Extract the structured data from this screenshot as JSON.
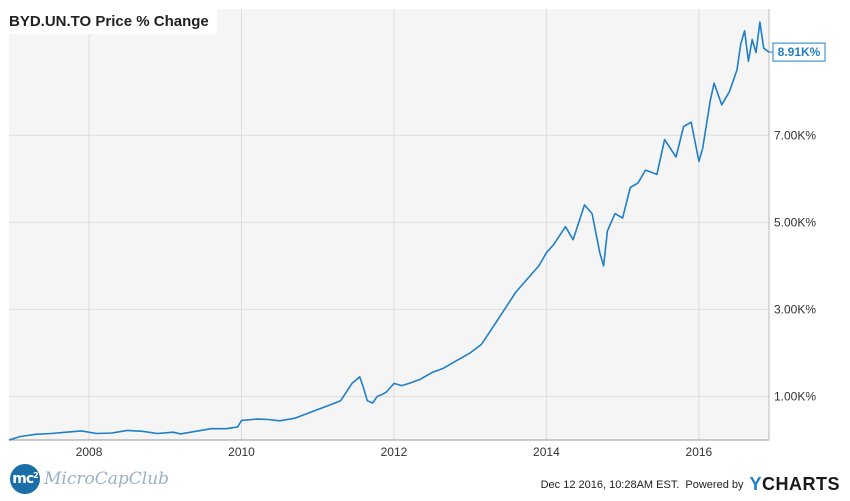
{
  "chart_data": {
    "type": "line",
    "title": "BYD.UN.TO Price % Change",
    "xlabel": "",
    "ylabel": "",
    "x_ticks": [
      "2008",
      "2010",
      "2012",
      "2014",
      "2016"
    ],
    "y_ticks": [
      "1.00K%",
      "3.00K%",
      "5.00K%",
      "7.00K%"
    ],
    "y_tick_values": [
      1000,
      3000,
      5000,
      7000
    ],
    "xlim": [
      2006.95,
      2016.92
    ],
    "ylim": [
      0,
      9900
    ],
    "grid": true,
    "last_value_label": "8.91K%",
    "series": [
      {
        "color": "#1f7fc8",
        "x": [
          2006.95,
          2007.1,
          2007.3,
          2007.5,
          2007.7,
          2007.9,
          2008.1,
          2008.3,
          2008.5,
          2008.7,
          2008.9,
          2009.1,
          2009.2,
          2009.4,
          2009.6,
          2009.8,
          2009.95,
          2010.0,
          2010.2,
          2010.35,
          2010.5,
          2010.7,
          2010.85,
          2011.0,
          2011.15,
          2011.3,
          2011.45,
          2011.55,
          2011.6,
          2011.65,
          2011.72,
          2011.78,
          2011.85,
          2011.9,
          2012.0,
          2012.1,
          2012.2,
          2012.35,
          2012.5,
          2012.65,
          2012.8,
          2013.0,
          2013.15,
          2013.3,
          2013.45,
          2013.6,
          2013.75,
          2013.9,
          2014.0,
          2014.1,
          2014.25,
          2014.35,
          2014.5,
          2014.6,
          2014.7,
          2014.75,
          2014.8,
          2014.9,
          2015.0,
          2015.1,
          2015.2,
          2015.3,
          2015.45,
          2015.55,
          2015.7,
          2015.8,
          2015.9,
          2016.0,
          2016.05,
          2016.15,
          2016.2,
          2016.3,
          2016.4,
          2016.5,
          2016.55,
          2016.6,
          2016.65,
          2016.7,
          2016.75,
          2016.8,
          2016.85,
          2016.92
        ],
        "values": [
          0,
          80,
          130,
          150,
          180,
          210,
          150,
          160,
          220,
          200,
          150,
          180,
          140,
          200,
          260,
          260,
          300,
          450,
          480,
          470,
          440,
          500,
          600,
          700,
          800,
          900,
          1300,
          1450,
          1200,
          900,
          850,
          1000,
          1050,
          1100,
          1300,
          1250,
          1300,
          1400,
          1550,
          1650,
          1800,
          2000,
          2200,
          2600,
          3000,
          3400,
          3700,
          4000,
          4300,
          4500,
          4900,
          4600,
          5400,
          5200,
          4300,
          4000,
          4800,
          5200,
          5100,
          5800,
          5900,
          6200,
          6100,
          6900,
          6500,
          7200,
          7300,
          6400,
          6700,
          7800,
          8200,
          7700,
          8000,
          8500,
          9100,
          9400,
          8700,
          9200,
          8900,
          9600,
          9000,
          8910
        ]
      }
    ]
  },
  "footer": {
    "brand_badge": "mc",
    "brand_badge_sup": "2",
    "brand_name": "MicroCapClub",
    "timestamp": "Dec 12 2016, 10:28AM EST.",
    "powered_by": "Powered by",
    "logo_y": "Y",
    "logo_rest": "CHARTS"
  }
}
